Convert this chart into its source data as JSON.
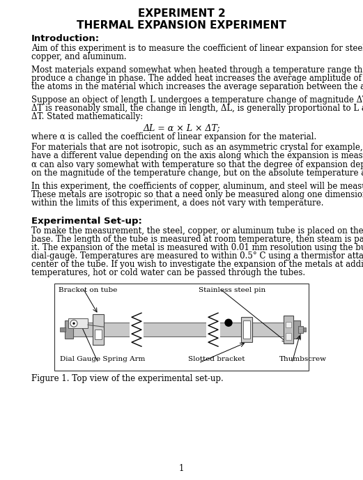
{
  "title1": "EXPERIMENT 2",
  "title2": "THERMAL EXPANSION EXPERIMENT",
  "section1_header": "Introduction:",
  "para1": "Aim of this experiment is to measure the coefficient of linear expansion for steel, copper, and aluminum.",
  "para2": "Most materials expand somewhat when heated through a temperature range that does not produce a change in phase. The added heat increases the average amplitude of vibration of the atoms in the material which increases the average separation between the atoms.",
  "para3a": "Suppose an object of length L undergoes a temperature change of magnitude ΔT. If",
  "para3b": "ΔT is reasonably small, the change in length, ΔL, is generally proportional to L and",
  "para3c": "ΔT. Stated mathematically:",
  "formula": "ΔL = α × L × ΔT;",
  "formula_note": "where α is called the coefficient of linear expansion for the material.",
  "para4": "For materials that are not isotropic, such as an asymmetric crystal for example, α can have a different value depending on the axis along which the expansion is measured.",
  "para5": "α can also vary somewhat with temperature so that the degree of expansion depends not only on the magnitude of the temperature change, but on the absolute temperature as well.",
  "para6": "In this experiment, the coefficients of copper, aluminum, and steel will be measured. These metals are isotropic so that a need only be measured along one dimension. Also, within the limits of this experiment, a does not vary with temperature.",
  "section2_header": "Experimental Set-up:",
  "para7": "To make the measurement, the steel, copper, or aluminum tube is placed on the expansion base. The length of the tube is measured at room temperature, then steam is passed through it. The expansion of the metal is measured with 0.01 mm resolution using the built-in dial-gauge. Temperatures are measured to within 0.5° C using a thermistor attached to the center of the tube. If you wish to investigate the expansion of the metals at additional temperatures, hot or cold water can be passed through the tubes.",
  "fig_caption": "Figure 1. Top view of the experimental set-up.",
  "page_num": "1",
  "background": "#ffffff",
  "text_color": "#000000"
}
